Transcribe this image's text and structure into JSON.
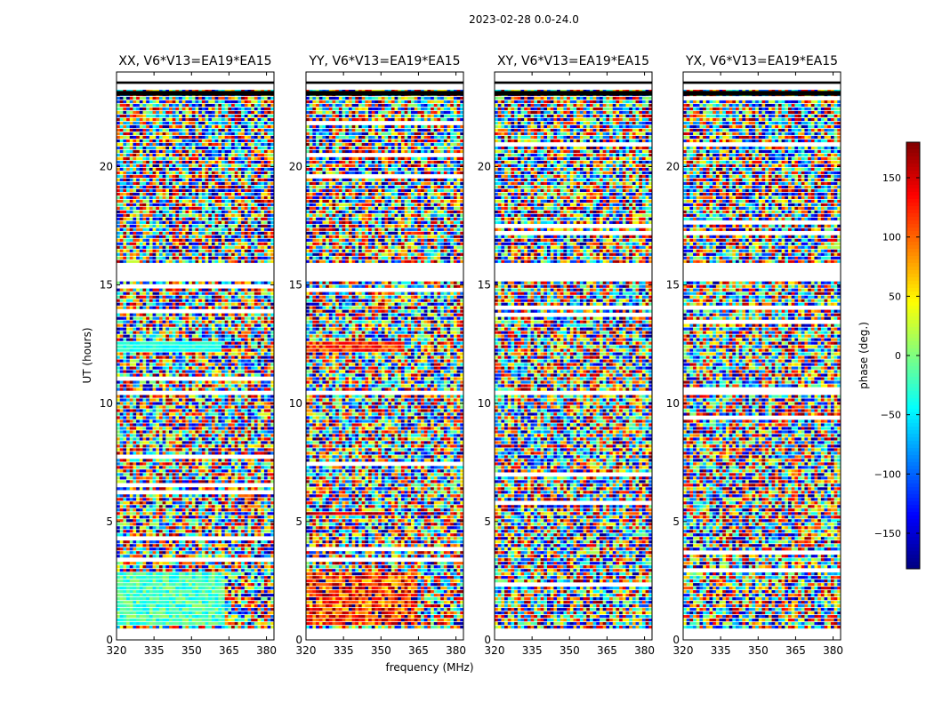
{
  "figure_title": "2023-02-28 0.0-24.0",
  "chart_data": {
    "type": "heatmap",
    "ylabel": "UT (hours)",
    "xlabel": "frequency (MHz)",
    "xlim": [
      320,
      383
    ],
    "ylim": [
      0,
      24
    ],
    "x_ticks": [
      320,
      335,
      350,
      365,
      380
    ],
    "y_ticks": [
      0,
      5,
      10,
      15,
      20
    ],
    "colormap": "jet",
    "colorbar": {
      "label": "phase (deg.)",
      "range": [
        -180,
        180
      ],
      "ticks": [
        150,
        100,
        50,
        0,
        -50,
        -100,
        -150
      ],
      "tick_labels": [
        "150",
        "100",
        "50",
        "0",
        "−50",
        "−100",
        "−150"
      ]
    },
    "flagged_hours": [
      [
        0.0,
        0.5
      ],
      [
        10.35,
        10.55
      ],
      [
        15.2,
        15.9
      ],
      [
        23.2,
        23.5
      ],
      [
        23.6,
        24.0
      ]
    ],
    "panels": [
      {
        "title": "XX, V6*V13=EA19*EA15",
        "ytick_labels": [
          "0",
          "5",
          "10",
          "15",
          "20"
        ],
        "coherent_regions": [
          {
            "t": [
              0.6,
              2.9
            ],
            "f": [
              320,
              363
            ],
            "phase_deg": -20,
            "spread_deg": 35
          },
          {
            "t": [
              12.2,
              12.6
            ],
            "f": [
              320,
              362
            ],
            "phase_deg": -35,
            "spread_deg": 15
          }
        ]
      },
      {
        "title": "YY, V6*V13=EA19*EA15",
        "ytick_labels": [
          "0",
          "5",
          "10",
          "15",
          "20"
        ],
        "coherent_regions": [
          {
            "t": [
              0.6,
              2.9
            ],
            "f": [
              320,
              364
            ],
            "phase_deg": 120,
            "spread_deg": 70
          },
          {
            "t": [
              12.2,
              12.6
            ],
            "f": [
              320,
              360
            ],
            "phase_deg": 120,
            "spread_deg": 40
          },
          {
            "t": [
              5.2,
              5.4
            ],
            "f": [
              320,
              352
            ],
            "phase_deg": 150,
            "spread_deg": 30
          }
        ]
      },
      {
        "title": "XY, V6*V13=EA19*EA15",
        "ytick_labels": [
          "0",
          "5",
          "10",
          "15",
          "20"
        ],
        "coherent_regions": []
      },
      {
        "title": "YX, V6*V13=EA19*EA15",
        "ytick_labels": [
          "0",
          "5",
          "10",
          "15",
          "20"
        ],
        "coherent_regions": []
      }
    ]
  }
}
